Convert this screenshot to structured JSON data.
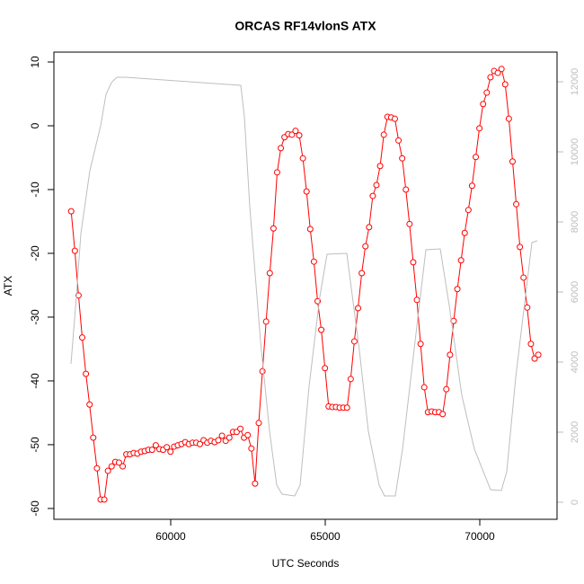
{
  "chart_data": {
    "type": "line",
    "title": "ORCAS RF14vlonS ATX",
    "x_label": "UTC Seconds",
    "y_label": "ATX",
    "xlim": [
      56221,
      72500
    ],
    "xticks": [
      60000,
      65000,
      70000
    ],
    "ylim": [
      -61.7,
      11.55
    ],
    "yticks": [
      -60,
      -50,
      -40,
      -30,
      -20,
      -10,
      0,
      10
    ],
    "y2lim": [
      -487,
      12846
    ],
    "y2ticks": [
      0,
      2000,
      4000,
      6000,
      8000,
      10000,
      12000
    ],
    "y2_color": "#bebebe",
    "series": [
      {
        "color": "#ff0000",
        "axis": "y",
        "markers": true,
        "x": [
          56780,
          56899,
          57018,
          57137,
          57256,
          57375,
          57494,
          57613,
          57732,
          57851,
          57970,
          58089,
          58208,
          58327,
          58446,
          58565,
          58684,
          58803,
          58922,
          59041,
          59160,
          59279,
          59398,
          59517,
          59636,
          59755,
          59874,
          59993,
          60112,
          60231,
          60350,
          60469,
          60588,
          60707,
          60826,
          60945,
          61064,
          61183,
          61302,
          61421,
          61540,
          61659,
          61778,
          61897,
          62016,
          62135,
          62254,
          62373,
          62492,
          62611,
          62730,
          62849,
          62968,
          63087,
          63206,
          63325,
          63444,
          63563,
          63682,
          63801,
          63920,
          64039,
          64158,
          64277,
          64396,
          64515,
          64634,
          64753,
          64872,
          64991,
          65110,
          65229,
          65348,
          65467,
          65586,
          65705,
          65824,
          65943,
          66062,
          66181,
          66300,
          66419,
          66538,
          66657,
          66776,
          66895,
          67014,
          67133,
          67252,
          67371,
          67490,
          67609,
          67728,
          67847,
          67966,
          68085,
          68204,
          68323,
          68442,
          68561,
          68680,
          68799,
          68918,
          69037,
          69156,
          69275,
          69394,
          69513,
          69632,
          69751,
          69870,
          69989,
          70108,
          70227,
          70346,
          70465,
          70584,
          70703,
          70822,
          70941,
          71060,
          71179,
          71298,
          71417,
          71536,
          71655,
          71774,
          71893
        ],
        "values": [
          -13.4,
          -19.6,
          -26.6,
          -33.2,
          -38.9,
          -43.7,
          -48.9,
          -53.7,
          -58.6,
          -58.6,
          -54.1,
          -53.4,
          -52.7,
          -52.8,
          -53.4,
          -51.5,
          -51.5,
          -51.3,
          -51.4,
          -51.1,
          -51.0,
          -50.8,
          -50.8,
          -50.1,
          -50.7,
          -50.8,
          -50.4,
          -51.1,
          -50.3,
          -50.1,
          -49.9,
          -49.6,
          -49.9,
          -49.7,
          -49.7,
          -49.9,
          -49.3,
          -49.7,
          -49.4,
          -49.6,
          -49.3,
          -48.6,
          -49.4,
          -48.9,
          -48.0,
          -48.0,
          -47.5,
          -48.9,
          -48.5,
          -50.6,
          -56.1,
          -46.6,
          -38.5,
          -30.7,
          -23.1,
          -16.1,
          -7.3,
          -3.5,
          -1.8,
          -1.3,
          -1.4,
          -0.8,
          -1.5,
          -5.1,
          -10.3,
          -16.2,
          -21.3,
          -27.5,
          -32.0,
          -38.0,
          -44.0,
          -44.1,
          -44.1,
          -44.2,
          -44.2,
          -44.2,
          -39.7,
          -33.8,
          -28.6,
          -23.1,
          -18.9,
          -15.9,
          -11.0,
          -9.3,
          -6.3,
          -1.4,
          1.4,
          1.3,
          1.1,
          -2.3,
          -5.1,
          -10.0,
          -15.4,
          -21.4,
          -27.3,
          -34.2,
          -41.0,
          -44.9,
          -44.8,
          -44.9,
          -44.9,
          -45.2,
          -41.3,
          -35.9,
          -30.6,
          -25.6,
          -21.1,
          -16.8,
          -13.2,
          -9.4,
          -4.9,
          -0.4,
          3.4,
          5.2,
          7.6,
          8.6,
          8.3,
          8.9,
          6.5,
          1.1,
          -5.6,
          -12.3,
          -19.0,
          -23.8,
          -28.5,
          -34.2,
          -36.5,
          -35.9
        ]
      },
      {
        "color": "#bebebe",
        "axis": "y2",
        "markers": false,
        "x": [
          56773,
          56948,
          57093,
          57384,
          57558,
          57733,
          57907,
          58081,
          58256,
          58547,
          62267,
          62384,
          62558,
          62907,
          63198,
          63430,
          63605,
          64012,
          64186,
          64477,
          64826,
          65058,
          65698,
          66105,
          66395,
          66744,
          66919,
          67267,
          67500,
          67907,
          68256,
          68721,
          69012,
          69419,
          69826,
          70349,
          70698,
          70872,
          71163,
          71512,
          71686,
          71860
        ],
        "values": [
          3949,
          5872,
          7667,
          9462,
          10103,
          10744,
          11641,
          11974,
          12128,
          12128,
          11897,
          11000,
          8436,
          4590,
          2026,
          487,
          231,
          179,
          487,
          3308,
          5872,
          7077,
          7103,
          4333,
          2026,
          487,
          179,
          179,
          1513,
          4590,
          7205,
          7231,
          5615,
          3051,
          1513,
          359,
          333,
          872,
          3564,
          6128,
          7410,
          7462
        ]
      }
    ]
  }
}
